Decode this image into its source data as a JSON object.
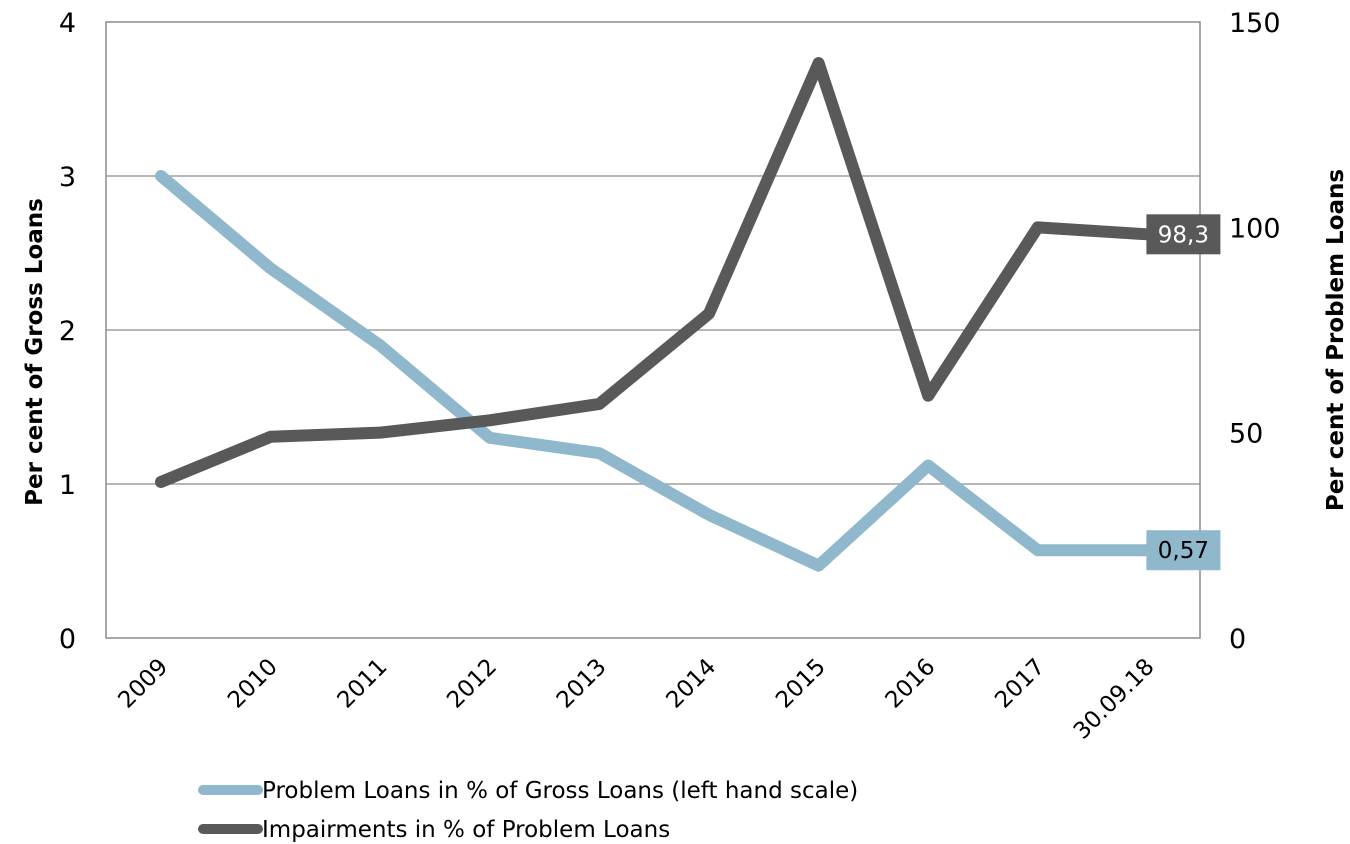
{
  "chart_data": {
    "type": "line",
    "categories": [
      "2009",
      "2010",
      "2011",
      "2012",
      "2013",
      "2014",
      "2015",
      "2016",
      "2017",
      "30.09.18"
    ],
    "series": [
      {
        "name": "Problem Loans in % of Gross Loans (left hand scale)",
        "axis": "left",
        "color": "#8fb8cc",
        "values": [
          3.0,
          2.4,
          1.9,
          1.3,
          1.2,
          0.8,
          0.47,
          1.12,
          0.57,
          0.57
        ],
        "end_label": "0,57"
      },
      {
        "name": "Impairments in % of Problem Loans",
        "axis": "right",
        "color": "#595959",
        "values": [
          38,
          49,
          50,
          53,
          57,
          79,
          140,
          59,
          100,
          98.3
        ],
        "end_label": "98,3"
      }
    ],
    "y_left": {
      "label": "Per cent of Gross Loans",
      "ylim": [
        0,
        4
      ],
      "ticks": [
        "0",
        "1",
        "2",
        "3",
        "4"
      ]
    },
    "y_right": {
      "label": "Per cent of Problem Loans",
      "ylim": [
        0,
        150
      ],
      "ticks": [
        "0",
        "50",
        "100",
        "150"
      ]
    },
    "grid": true,
    "legend_position": "bottom"
  }
}
